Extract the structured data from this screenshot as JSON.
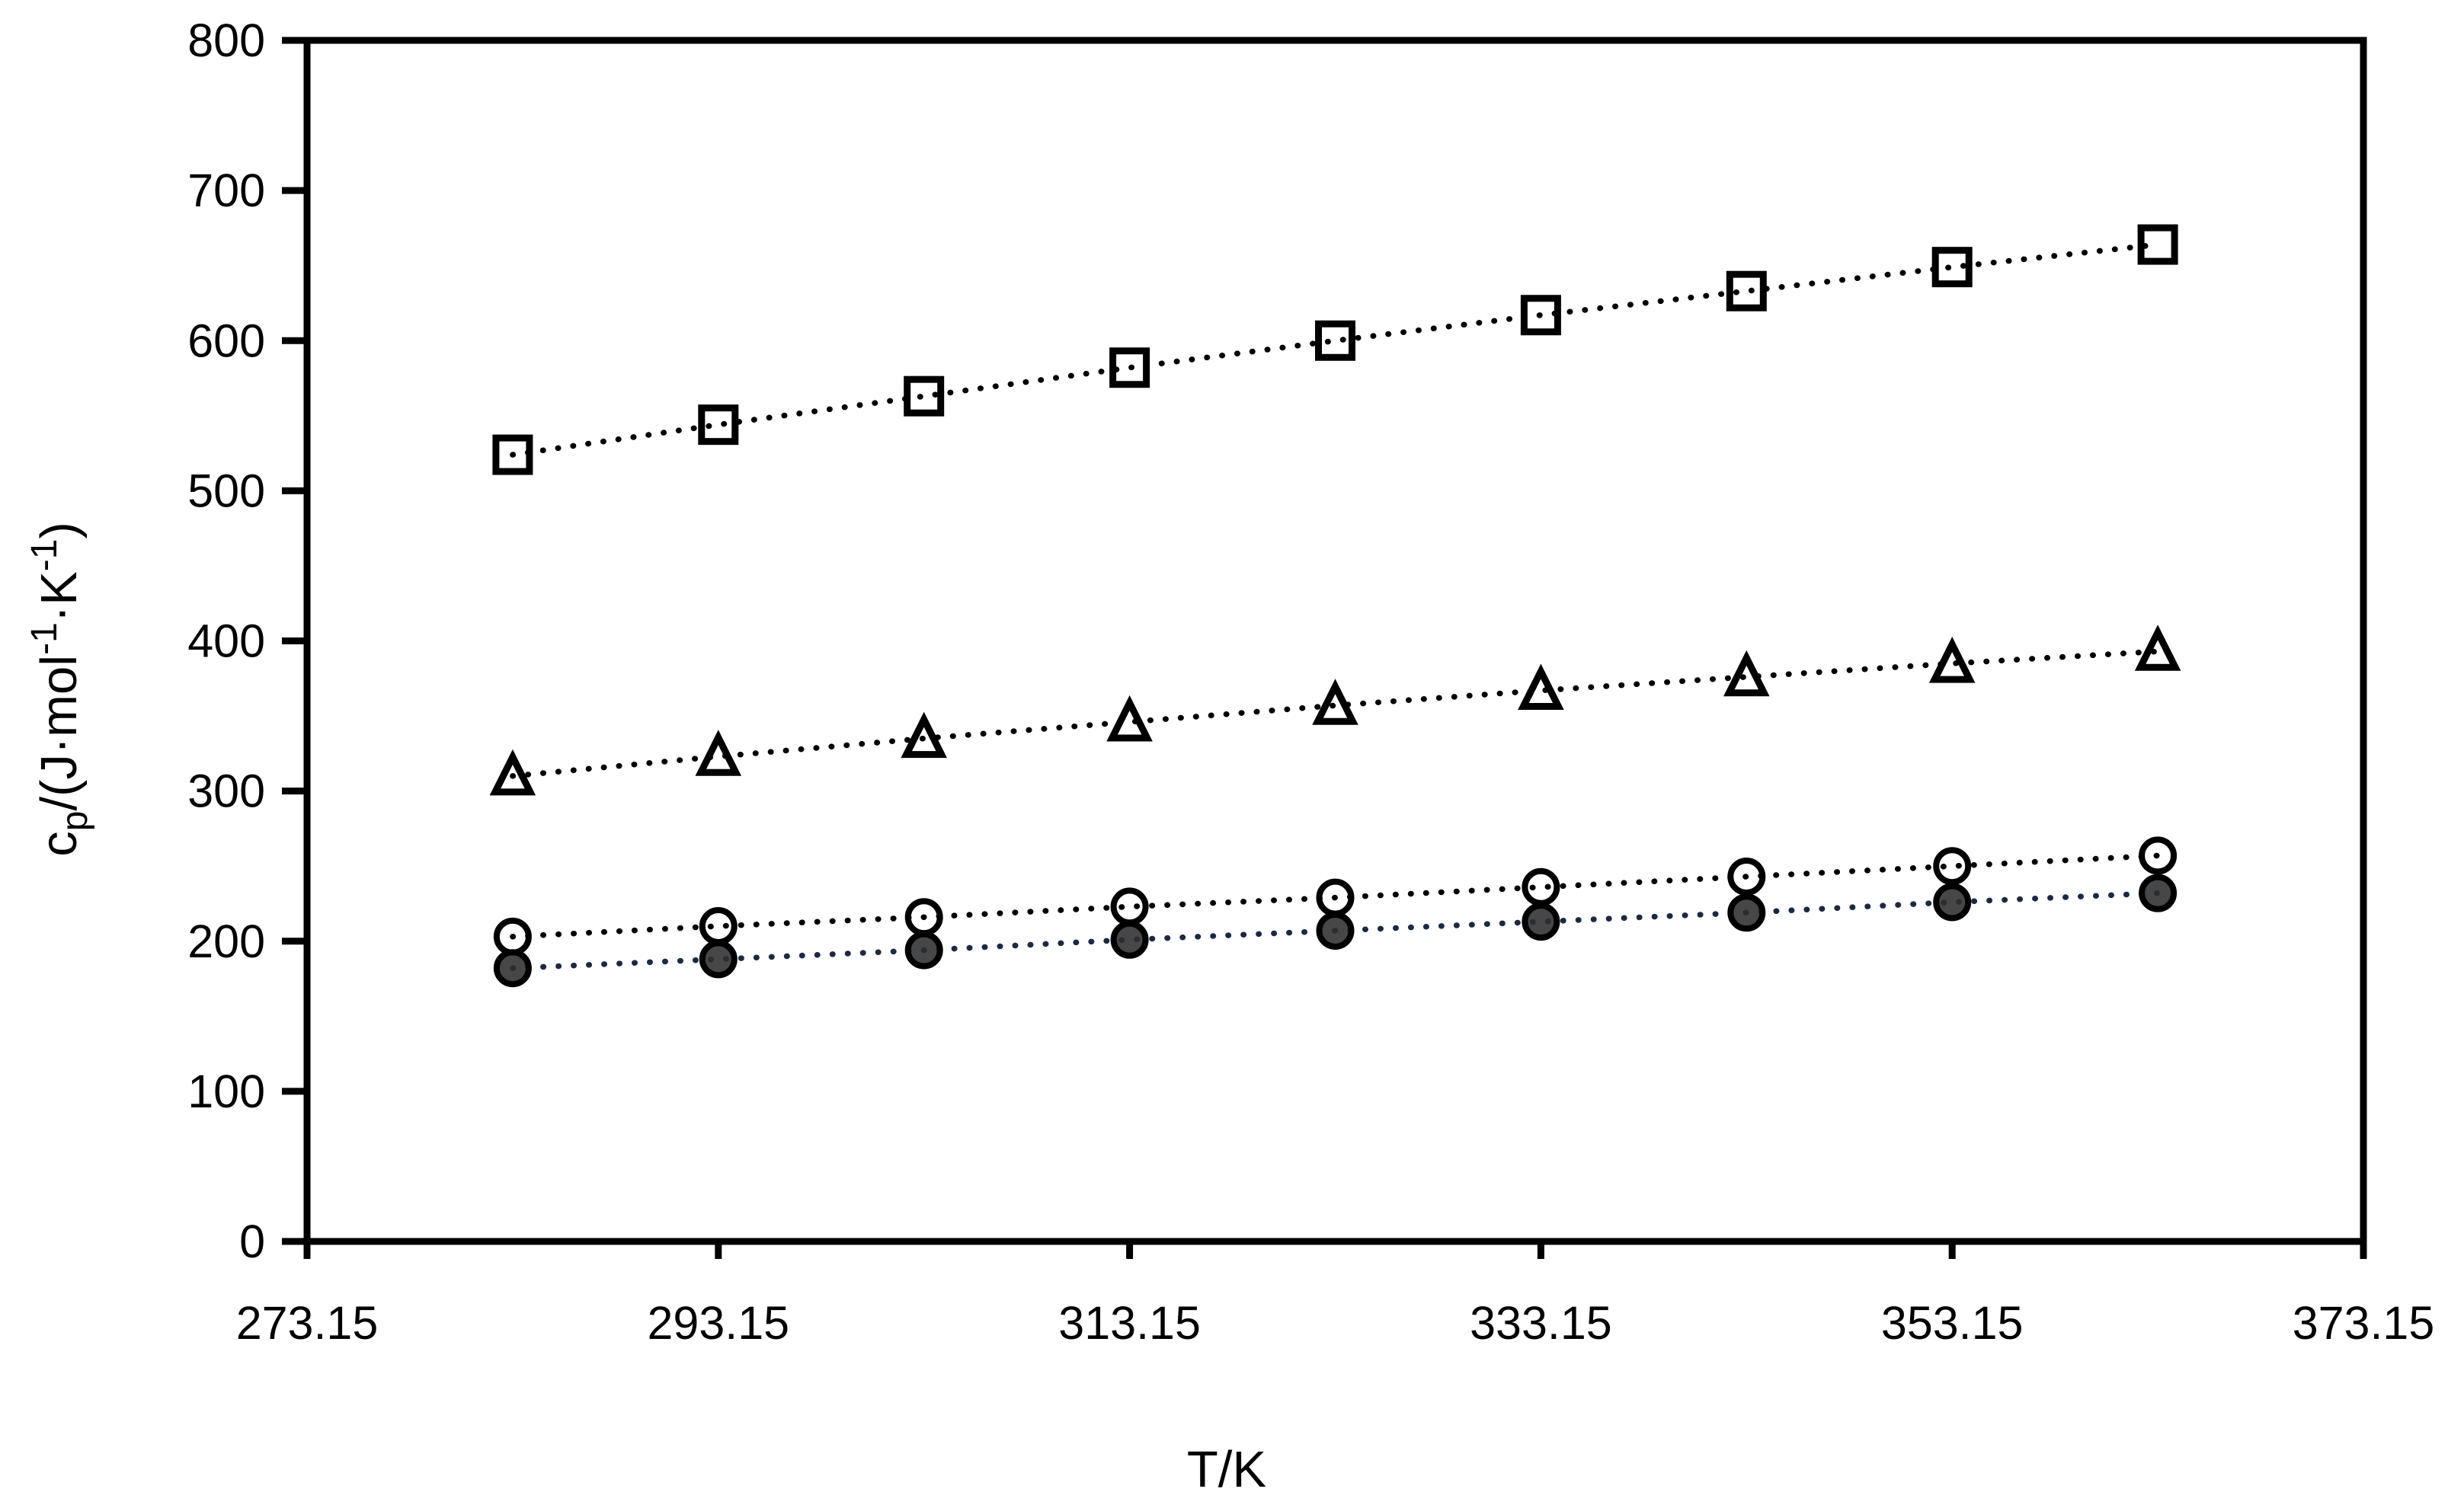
{
  "chart_data": {
    "type": "scatter",
    "title": "",
    "xlabel": "T/K",
    "ylabel": "cp/(J·mol-1·K-1)",
    "ylabel_parts": [
      {
        "text": "c",
        "style": "base"
      },
      {
        "text": "p",
        "style": "sub"
      },
      {
        "text": "/(J·mol",
        "style": "base"
      },
      {
        "text": "-1",
        "style": "sup"
      },
      {
        "text": "·K",
        "style": "base"
      },
      {
        "text": "-1",
        "style": "sup"
      },
      {
        "text": ")",
        "style": "base"
      }
    ],
    "xlim": [
      273.15,
      373.15
    ],
    "ylim": [
      0,
      800
    ],
    "x_tick_labels": [
      "273.15",
      "293.15",
      "313.15",
      "333.15",
      "353.15",
      "373.15"
    ],
    "x_ticks": [
      273.15,
      293.15,
      313.15,
      333.15,
      353.15,
      373.15
    ],
    "y_tick_labels": [
      "0",
      "100",
      "200",
      "300",
      "400",
      "500",
      "600",
      "700",
      "800"
    ],
    "y_ticks": [
      0,
      100,
      200,
      300,
      400,
      500,
      600,
      700,
      800
    ],
    "grid": false,
    "legend": false,
    "frame": "full-box",
    "line_style": "dotted",
    "x": [
      283.15,
      293.15,
      303.15,
      313.15,
      323.15,
      333.15,
      343.15,
      353.15,
      363.15
    ],
    "series": [
      {
        "name": "open-squares",
        "marker": "square",
        "fill_mode": "open",
        "marker_stroke": "#000000",
        "marker_fill": "none",
        "line_color": "#000000",
        "values": [
          524,
          544,
          563,
          582,
          600,
          617,
          633,
          649,
          664
        ]
      },
      {
        "name": "open-triangles",
        "marker": "triangle",
        "fill_mode": "open",
        "marker_stroke": "#000000",
        "marker_fill": "none",
        "line_color": "#000000",
        "values": [
          310,
          323,
          335,
          346,
          357,
          367,
          376,
          385,
          393
        ]
      },
      {
        "name": "open-circles",
        "marker": "circle",
        "fill_mode": "open",
        "marker_stroke": "#000000",
        "marker_fill": "none",
        "line_color": "#000000",
        "values": [
          203,
          210,
          216,
          223,
          229,
          236,
          243,
          250,
          257
        ]
      },
      {
        "name": "filled-circles",
        "marker": "circle",
        "fill_mode": "filled",
        "marker_stroke": "#000000",
        "marker_fill": "#2d2d2d",
        "line_color": "#1c2942",
        "values": [
          182,
          188,
          194,
          201,
          207,
          213,
          219,
          226,
          232
        ]
      }
    ],
    "colors": {
      "axis": "#000000",
      "text": "#000000",
      "background": "#ffffff"
    }
  }
}
